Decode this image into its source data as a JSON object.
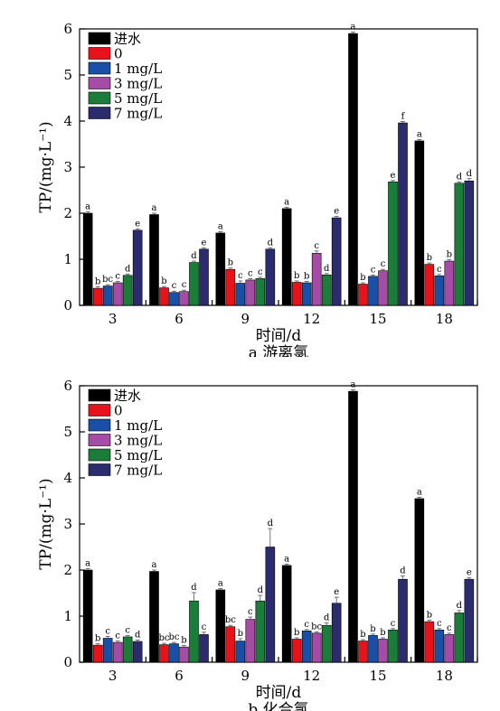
{
  "chart_data": [
    {
      "type": "bar",
      "subtitle": "a 游离氯",
      "xlabel": "时间/d",
      "ylabel": "TP/(mg·L⁻¹)",
      "ylim": [
        0,
        6
      ],
      "yticks": [
        "0",
        "1",
        "2",
        "3",
        "4",
        "5",
        "6"
      ],
      "categories": [
        "3",
        "6",
        "9",
        "12",
        "15",
        "18"
      ],
      "legend": "top-left",
      "series": [
        {
          "name": "进水",
          "color": "#000000",
          "values": [
            2.0,
            1.97,
            1.57,
            2.1,
            5.9,
            3.57
          ],
          "errors": [
            0.03,
            0.03,
            0.03,
            0.03,
            0.03,
            0.03
          ],
          "labels": [
            "a",
            "a",
            "a",
            "a",
            "a",
            "a"
          ]
        },
        {
          "name": "0",
          "color": "#e8121b",
          "values": [
            0.37,
            0.38,
            0.78,
            0.5,
            0.46,
            0.89
          ],
          "errors": [
            0.03,
            0.03,
            0.03,
            0.03,
            0.03,
            0.03
          ],
          "labels": [
            "b",
            "b",
            "b",
            "b",
            "b",
            "b"
          ]
        },
        {
          "name": "1 mg/L",
          "color": "#1a4fa8",
          "values": [
            0.42,
            0.28,
            0.48,
            0.49,
            0.63,
            0.64
          ],
          "errors": [
            0.03,
            0.03,
            0.05,
            0.03,
            0.03,
            0.03
          ],
          "labels": [
            "bc",
            "c",
            "c",
            "b",
            "c",
            "c"
          ]
        },
        {
          "name": "3 mg/L",
          "color": "#a64ba6",
          "values": [
            0.49,
            0.3,
            0.55,
            1.13,
            0.75,
            0.96
          ],
          "errors": [
            0.03,
            0.03,
            0.03,
            0.05,
            0.03,
            0.03
          ],
          "labels": [
            "c",
            "c",
            "c",
            "c",
            "c",
            "b"
          ]
        },
        {
          "name": "5 mg/L",
          "color": "#1a7d3a",
          "values": [
            0.65,
            0.93,
            0.58,
            0.66,
            2.68,
            2.65
          ],
          "errors": [
            0.03,
            0.03,
            0.03,
            0.03,
            0.03,
            0.03
          ],
          "labels": [
            "d",
            "d",
            "c",
            "d",
            "e",
            "d"
          ]
        },
        {
          "name": "7 mg/L",
          "color": "#2a2c6e",
          "values": [
            1.63,
            1.22,
            1.22,
            1.9,
            3.96,
            2.7
          ],
          "errors": [
            0.03,
            0.03,
            0.03,
            0.03,
            0.03,
            0.05
          ],
          "labels": [
            "e",
            "e",
            "d",
            "e",
            "f",
            "d"
          ]
        }
      ]
    },
    {
      "type": "bar",
      "subtitle": "b 化合氯",
      "xlabel": "时间/d",
      "ylabel": "TP/(mg·L⁻¹)",
      "ylim": [
        0,
        6
      ],
      "yticks": [
        "0",
        "1",
        "2",
        "3",
        "4",
        "5",
        "6"
      ],
      "categories": [
        "3",
        "6",
        "9",
        "12",
        "15",
        "18"
      ],
      "legend": "top-left",
      "series": [
        {
          "name": "进水",
          "color": "#000000",
          "values": [
            2.0,
            1.97,
            1.57,
            2.1,
            5.88,
            3.55
          ],
          "errors": [
            0.03,
            0.03,
            0.03,
            0.03,
            0.03,
            0.03
          ],
          "labels": [
            "a",
            "a",
            "a",
            "a",
            "a",
            "a"
          ]
        },
        {
          "name": "0",
          "color": "#e8121b",
          "values": [
            0.37,
            0.38,
            0.77,
            0.5,
            0.46,
            0.88
          ],
          "errors": [
            0.03,
            0.03,
            0.03,
            0.03,
            0.03,
            0.03
          ],
          "labels": [
            "b",
            "bc",
            "bc",
            "b",
            "b",
            "b"
          ]
        },
        {
          "name": "1 mg/L",
          "color": "#1a4fa8",
          "values": [
            0.52,
            0.4,
            0.46,
            0.68,
            0.58,
            0.7
          ],
          "errors": [
            0.04,
            0.03,
            0.05,
            0.03,
            0.03,
            0.03
          ],
          "labels": [
            "c",
            "bc",
            "b",
            "c",
            "b",
            "c"
          ]
        },
        {
          "name": "3 mg/L",
          "color": "#a64ba6",
          "values": [
            0.43,
            0.33,
            0.93,
            0.63,
            0.5,
            0.6
          ],
          "errors": [
            0.03,
            0.03,
            0.05,
            0.03,
            0.03,
            0.03
          ],
          "labels": [
            "c",
            "b",
            "c",
            "bc",
            "b",
            "c"
          ]
        },
        {
          "name": "5 mg/L",
          "color": "#1a7d3a",
          "values": [
            0.55,
            1.33,
            1.33,
            0.8,
            0.7,
            1.07
          ],
          "errors": [
            0.03,
            0.18,
            0.12,
            0.05,
            0.03,
            0.05
          ],
          "labels": [
            "c",
            "d",
            "d",
            "d",
            "c",
            "d"
          ]
        },
        {
          "name": "7 mg/L",
          "color": "#2a2c6e",
          "values": [
            0.45,
            0.6,
            2.5,
            1.28,
            1.8,
            1.8
          ],
          "errors": [
            0.03,
            0.05,
            0.4,
            0.13,
            0.07,
            0.03
          ],
          "labels": [
            "d",
            "c",
            "d",
            "e",
            "d",
            "e"
          ]
        }
      ]
    }
  ]
}
